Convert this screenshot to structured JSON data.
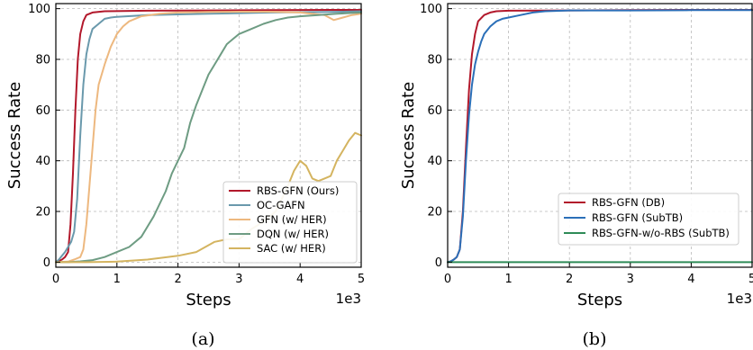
{
  "chart_data": [
    {
      "type": "line",
      "panel_caption": "(a)",
      "xlabel": "Steps",
      "ylabel": "Success Rate",
      "x_scale_label": "1e3",
      "xlim": [
        0,
        5
      ],
      "ylim": [
        -2,
        102
      ],
      "xticks": [
        0,
        1,
        2,
        3,
        4,
        5
      ],
      "yticks": [
        0,
        20,
        40,
        60,
        80,
        100
      ],
      "grid": true,
      "legend_position": "bottom-right",
      "series": [
        {
          "name": "RBS-GFN (Ours)",
          "color": "#b2182b",
          "points": [
            [
              0,
              0
            ],
            [
              0.05,
              0.5
            ],
            [
              0.1,
              1
            ],
            [
              0.15,
              2
            ],
            [
              0.2,
              4
            ],
            [
              0.24,
              15
            ],
            [
              0.28,
              35
            ],
            [
              0.32,
              60
            ],
            [
              0.36,
              80
            ],
            [
              0.4,
              90
            ],
            [
              0.45,
              95
            ],
            [
              0.5,
              97.5
            ],
            [
              0.6,
              98.5
            ],
            [
              0.8,
              99
            ],
            [
              1.5,
              99.2
            ],
            [
              2.5,
              99.3
            ],
            [
              3.5,
              99.4
            ],
            [
              4.5,
              99.5
            ],
            [
              5,
              99.5
            ]
          ]
        },
        {
          "name": "OC-GAFN",
          "color": "#6a99ac",
          "points": [
            [
              0,
              0
            ],
            [
              0.05,
              1
            ],
            [
              0.1,
              2.5
            ],
            [
              0.15,
              4
            ],
            [
              0.2,
              6
            ],
            [
              0.25,
              8
            ],
            [
              0.3,
              12
            ],
            [
              0.35,
              25
            ],
            [
              0.4,
              50
            ],
            [
              0.45,
              70
            ],
            [
              0.5,
              82
            ],
            [
              0.55,
              88
            ],
            [
              0.6,
              92
            ],
            [
              0.7,
              94
            ],
            [
              0.8,
              96
            ],
            [
              0.9,
              96.5
            ],
            [
              1.0,
              96.8
            ],
            [
              1.5,
              97.5
            ],
            [
              2.5,
              98
            ],
            [
              3.5,
              98.5
            ],
            [
              4.5,
              98.7
            ],
            [
              5,
              99
            ]
          ]
        },
        {
          "name": "GFN (w/ HER)",
          "color": "#edb87f",
          "points": [
            [
              0,
              0
            ],
            [
              0.2,
              0.2
            ],
            [
              0.3,
              1
            ],
            [
              0.4,
              2
            ],
            [
              0.45,
              5
            ],
            [
              0.5,
              15
            ],
            [
              0.55,
              30
            ],
            [
              0.6,
              45
            ],
            [
              0.65,
              60
            ],
            [
              0.7,
              70
            ],
            [
              0.8,
              78
            ],
            [
              0.9,
              85
            ],
            [
              1.0,
              90
            ],
            [
              1.1,
              93
            ],
            [
              1.2,
              95
            ],
            [
              1.4,
              97
            ],
            [
              1.7,
              98
            ],
            [
              2.0,
              98.5
            ],
            [
              2.5,
              98.7
            ],
            [
              3.0,
              98.8
            ],
            [
              3.5,
              98.8
            ],
            [
              4.0,
              98.5
            ],
            [
              4.4,
              97.5
            ],
            [
              4.55,
              95.5
            ],
            [
              4.7,
              96.5
            ],
            [
              4.85,
              97.5
            ],
            [
              5,
              98
            ]
          ]
        },
        {
          "name": "DQN (w/ HER)",
          "color": "#6e9c83",
          "points": [
            [
              0,
              0
            ],
            [
              0.2,
              0
            ],
            [
              0.4,
              0.3
            ],
            [
              0.6,
              0.8
            ],
            [
              0.8,
              2
            ],
            [
              1.0,
              4
            ],
            [
              1.2,
              6
            ],
            [
              1.4,
              10
            ],
            [
              1.6,
              18
            ],
            [
              1.8,
              28
            ],
            [
              1.9,
              35
            ],
            [
              2.0,
              40
            ],
            [
              2.1,
              45
            ],
            [
              2.2,
              55
            ],
            [
              2.3,
              62
            ],
            [
              2.4,
              68
            ],
            [
              2.5,
              74
            ],
            [
              2.6,
              78
            ],
            [
              2.7,
              82
            ],
            [
              2.8,
              86
            ],
            [
              2.9,
              88
            ],
            [
              3.0,
              90
            ],
            [
              3.2,
              92
            ],
            [
              3.4,
              94
            ],
            [
              3.6,
              95.5
            ],
            [
              3.8,
              96.5
            ],
            [
              4.0,
              97
            ],
            [
              4.3,
              97.5
            ],
            [
              4.6,
              98
            ],
            [
              5,
              98.5
            ]
          ]
        },
        {
          "name": "SAC (w/ HER)",
          "color": "#d4b460",
          "points": [
            [
              0,
              0
            ],
            [
              0.5,
              0
            ],
            [
              1.0,
              0.2
            ],
            [
              1.5,
              1
            ],
            [
              2.0,
              2.5
            ],
            [
              2.3,
              4
            ],
            [
              2.6,
              8
            ],
            [
              2.8,
              9
            ],
            [
              3.0,
              9
            ],
            [
              3.2,
              13
            ],
            [
              3.4,
              16
            ],
            [
              3.6,
              20
            ],
            [
              3.7,
              25
            ],
            [
              3.8,
              30
            ],
            [
              3.9,
              36
            ],
            [
              4.0,
              40
            ],
            [
              4.1,
              38
            ],
            [
              4.2,
              33
            ],
            [
              4.3,
              32
            ],
            [
              4.4,
              33
            ],
            [
              4.5,
              34
            ],
            [
              4.6,
              40
            ],
            [
              4.7,
              44
            ],
            [
              4.8,
              48
            ],
            [
              4.9,
              51
            ],
            [
              5,
              50
            ]
          ]
        }
      ]
    },
    {
      "type": "line",
      "panel_caption": "(b)",
      "xlabel": "Steps",
      "ylabel": "Success Rate",
      "x_scale_label": "1e3",
      "xlim": [
        0,
        5
      ],
      "ylim": [
        -2,
        102
      ],
      "xticks": [
        0,
        1,
        2,
        3,
        4,
        5
      ],
      "yticks": [
        0,
        20,
        40,
        60,
        80,
        100
      ],
      "grid": true,
      "legend_position": "bottom-right",
      "series": [
        {
          "name": "RBS-GFN (DB)",
          "color": "#b2182b",
          "points": [
            [
              0,
              0
            ],
            [
              0.05,
              0.3
            ],
            [
              0.1,
              1
            ],
            [
              0.15,
              2
            ],
            [
              0.2,
              5
            ],
            [
              0.25,
              20
            ],
            [
              0.3,
              45
            ],
            [
              0.35,
              68
            ],
            [
              0.4,
              82
            ],
            [
              0.45,
              90
            ],
            [
              0.5,
              95
            ],
            [
              0.6,
              97.5
            ],
            [
              0.7,
              98.5
            ],
            [
              0.8,
              99
            ],
            [
              1.0,
              99.2
            ],
            [
              2.0,
              99.3
            ],
            [
              3.0,
              99.4
            ],
            [
              4.0,
              99.5
            ],
            [
              5,
              99.5
            ]
          ]
        },
        {
          "name": "RBS-GFN (SubTB)",
          "color": "#2b6fb8",
          "points": [
            [
              0,
              0
            ],
            [
              0.05,
              0.3
            ],
            [
              0.1,
              1
            ],
            [
              0.15,
              2
            ],
            [
              0.2,
              5
            ],
            [
              0.25,
              18
            ],
            [
              0.3,
              40
            ],
            [
              0.35,
              58
            ],
            [
              0.4,
              70
            ],
            [
              0.45,
              78
            ],
            [
              0.5,
              83
            ],
            [
              0.55,
              87
            ],
            [
              0.6,
              90
            ],
            [
              0.7,
              93
            ],
            [
              0.8,
              95
            ],
            [
              0.9,
              96
            ],
            [
              1.0,
              96.5
            ],
            [
              1.2,
              97.5
            ],
            [
              1.4,
              98.5
            ],
            [
              1.6,
              99
            ],
            [
              2.0,
              99.3
            ],
            [
              3.0,
              99.3
            ],
            [
              4.0,
              99.4
            ],
            [
              5,
              99.4
            ]
          ]
        },
        {
          "name": "RBS-GFN-w/o-RBS (SubTB)",
          "color": "#2e8b57",
          "points": [
            [
              0,
              0
            ],
            [
              5,
              0
            ]
          ]
        }
      ]
    }
  ]
}
